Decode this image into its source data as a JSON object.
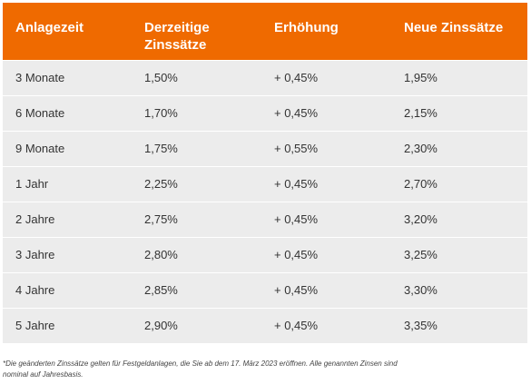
{
  "colors": {
    "header_background": "#ef6a00",
    "header_text": "#ffffff",
    "row_background": "#ececec",
    "row_text": "#333333"
  },
  "table": {
    "headers": [
      {
        "line1": "Anlagezeit",
        "line2": ""
      },
      {
        "line1": "Derzeitige",
        "line2": "Zinssätze"
      },
      {
        "line1": "Erhöhung",
        "line2": ""
      },
      {
        "line1": "Neue Zinssätze",
        "line2": ""
      }
    ],
    "rows": [
      [
        "3 Monate",
        "1,50%",
        "+ 0,45%",
        "1,95%"
      ],
      [
        "6 Monate",
        "1,70%",
        "+ 0,45%",
        "2,15%"
      ],
      [
        "9 Monate",
        "1,75%",
        "+ 0,55%",
        "2,30%"
      ],
      [
        "1 Jahr",
        "2,25%",
        "+ 0,45%",
        "2,70%"
      ],
      [
        "2 Jahre",
        "2,75%",
        "+ 0,45%",
        "3,20%"
      ],
      [
        "3 Jahre",
        "2,80%",
        "+ 0,45%",
        "3,25%"
      ],
      [
        "4 Jahre",
        "2,85%",
        "+ 0,45%",
        "3,30%"
      ],
      [
        "5 Jahre",
        "2,90%",
        "+ 0,45%",
        "3,35%"
      ]
    ]
  },
  "footnote": {
    "line1": "*Die geänderten Zinssätze gelten für Festgeldanlagen, die Sie ab dem 17. März 2023 eröffnen. Alle genannten Zinsen sind",
    "line2": "nominal auf Jahresbasis."
  }
}
